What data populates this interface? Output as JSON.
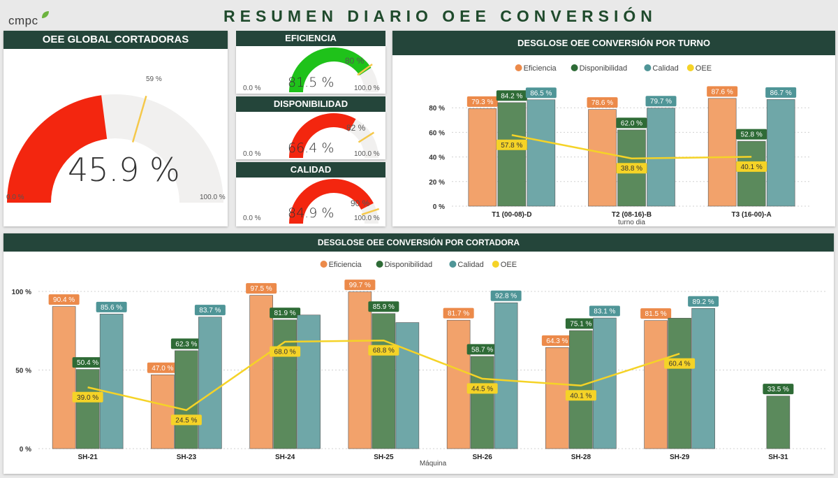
{
  "header": {
    "logo_text": "cmpc",
    "title": "RESUMEN DIARIO OEE CONVERSIÓN"
  },
  "oee_global": {
    "title": "OEE GLOBAL CORTADORAS",
    "value": 45.9,
    "value_label": "45.9 %",
    "target": 59,
    "target_label": "59 %",
    "min_label": "0.0 %",
    "max_label": "100.0 %",
    "fill_color": "#f3260f",
    "track_color": "#f1f0ef",
    "target_color": "#f5c84a"
  },
  "kpis": [
    {
      "title": "EFICIENCIA",
      "value": 81.5,
      "value_label": "81.5 %",
      "target": 80,
      "target_label": "80 %",
      "min_label": "0.0 %",
      "max_label": "100.0 %",
      "fill_color": "#1fc21a"
    },
    {
      "title": "DISPONIBILIDAD",
      "value": 66.4,
      "value_label": "66.4 %",
      "target": 82,
      "target_label": "82 %",
      "min_label": "0.0 %",
      "max_label": "100.0 %",
      "fill_color": "#f3260f"
    },
    {
      "title": "CALIDAD",
      "value": 84.9,
      "value_label": "84.9 %",
      "target": 90,
      "target_label": "90 %",
      "min_label": "0.0 %",
      "max_label": "100.0 %",
      "fill_color": "#f3260f"
    }
  ],
  "legend": {
    "eficiencia": "Eficiencia",
    "disponibilidad": "Disponibilidad",
    "calidad": "Calidad",
    "oee": "OEE"
  },
  "colors": {
    "eficiencia": "#f2a26b",
    "disponibilidad": "#5b8a5c",
    "calidad": "#6fa7a8",
    "oee": "#f5d327",
    "eficiencia_label": "#ec8a4a",
    "disponibilidad_label": "#2e6b36",
    "calidad_label": "#4f9597",
    "oee_label": "#f5d327"
  },
  "chart_data": [
    {
      "id": "turno",
      "type": "bar",
      "title": "DESGLOSE OEE CONVERSIÓN POR TURNO",
      "xlabel": "turno dia",
      "ylabel": "",
      "ylim": [
        0,
        100
      ],
      "yticks": [
        "0 %",
        "20 %",
        "40 %",
        "60 %",
        "80 %"
      ],
      "grid": true,
      "legend_position": "top",
      "categories": [
        "T1 (00-08)-D",
        "T2 (08-16)-B",
        "T3 (16-00)-A"
      ],
      "series": [
        {
          "name": "Eficiencia",
          "type": "bar",
          "values": [
            79.3,
            78.6,
            87.6
          ],
          "labels": [
            "79.3 %",
            "78.6 %",
            "87.6 %"
          ]
        },
        {
          "name": "Disponibilidad",
          "type": "bar",
          "values": [
            84.2,
            62.0,
            52.8
          ],
          "labels": [
            "84.2 %",
            "62.0 %",
            "52.8 %"
          ]
        },
        {
          "name": "Calidad",
          "type": "bar",
          "values": [
            86.5,
            79.7,
            86.7
          ],
          "labels": [
            "86.5 %",
            "79.7 %",
            "86.7 %"
          ]
        },
        {
          "name": "OEE",
          "type": "line",
          "values": [
            57.8,
            38.8,
            40.1
          ],
          "labels": [
            "57.8 %",
            "38.8 %",
            "40.1 %"
          ]
        }
      ]
    },
    {
      "id": "cortadora",
      "type": "bar",
      "title": "DESGLOSE OEE CONVERSIÓN POR CORTADORA",
      "xlabel": "Máquina",
      "ylabel": "",
      "ylim": [
        0,
        100
      ],
      "yticks": [
        "0 %",
        "50 %",
        "100 %"
      ],
      "grid": true,
      "legend_position": "top",
      "categories": [
        "SH-21",
        "SH-23",
        "SH-24",
        "SH-25",
        "SH-26",
        "SH-28",
        "SH-29",
        "SH-31"
      ],
      "series": [
        {
          "name": "Eficiencia",
          "type": "bar",
          "values": [
            90.4,
            47.0,
            97.5,
            99.7,
            81.7,
            64.3,
            81.5,
            null
          ],
          "labels": [
            "90.4 %",
            "47.0 %",
            "97.5 %",
            "99.7 %",
            "81.7 %",
            "64.3 %",
            "81.5 %",
            null
          ]
        },
        {
          "name": "Disponibilidad",
          "type": "bar",
          "values": [
            50.4,
            62.3,
            81.9,
            85.9,
            58.7,
            75.1,
            83.0,
            33.5
          ],
          "labels": [
            "50.4 %",
            "62.3 %",
            "81.9 %",
            "85.9 %",
            "58.7 %",
            "75.1 %",
            null,
            "33.5 %"
          ]
        },
        {
          "name": "Calidad",
          "type": "bar",
          "values": [
            85.6,
            83.7,
            85.0,
            80.2,
            92.8,
            83.1,
            89.2,
            null
          ],
          "labels": [
            "85.6 %",
            "83.7 %",
            null,
            null,
            "92.8 %",
            "83.1 %",
            "89.2 %",
            null
          ]
        },
        {
          "name": "OEE",
          "type": "line",
          "values": [
            39.0,
            24.5,
            68.0,
            68.8,
            44.5,
            40.1,
            60.4,
            null
          ],
          "labels": [
            "39.0 %",
            "24.5 %",
            "68.0 %",
            "68.8 %",
            "44.5 %",
            "40.1 %",
            "60.4 %",
            null
          ]
        }
      ]
    }
  ]
}
